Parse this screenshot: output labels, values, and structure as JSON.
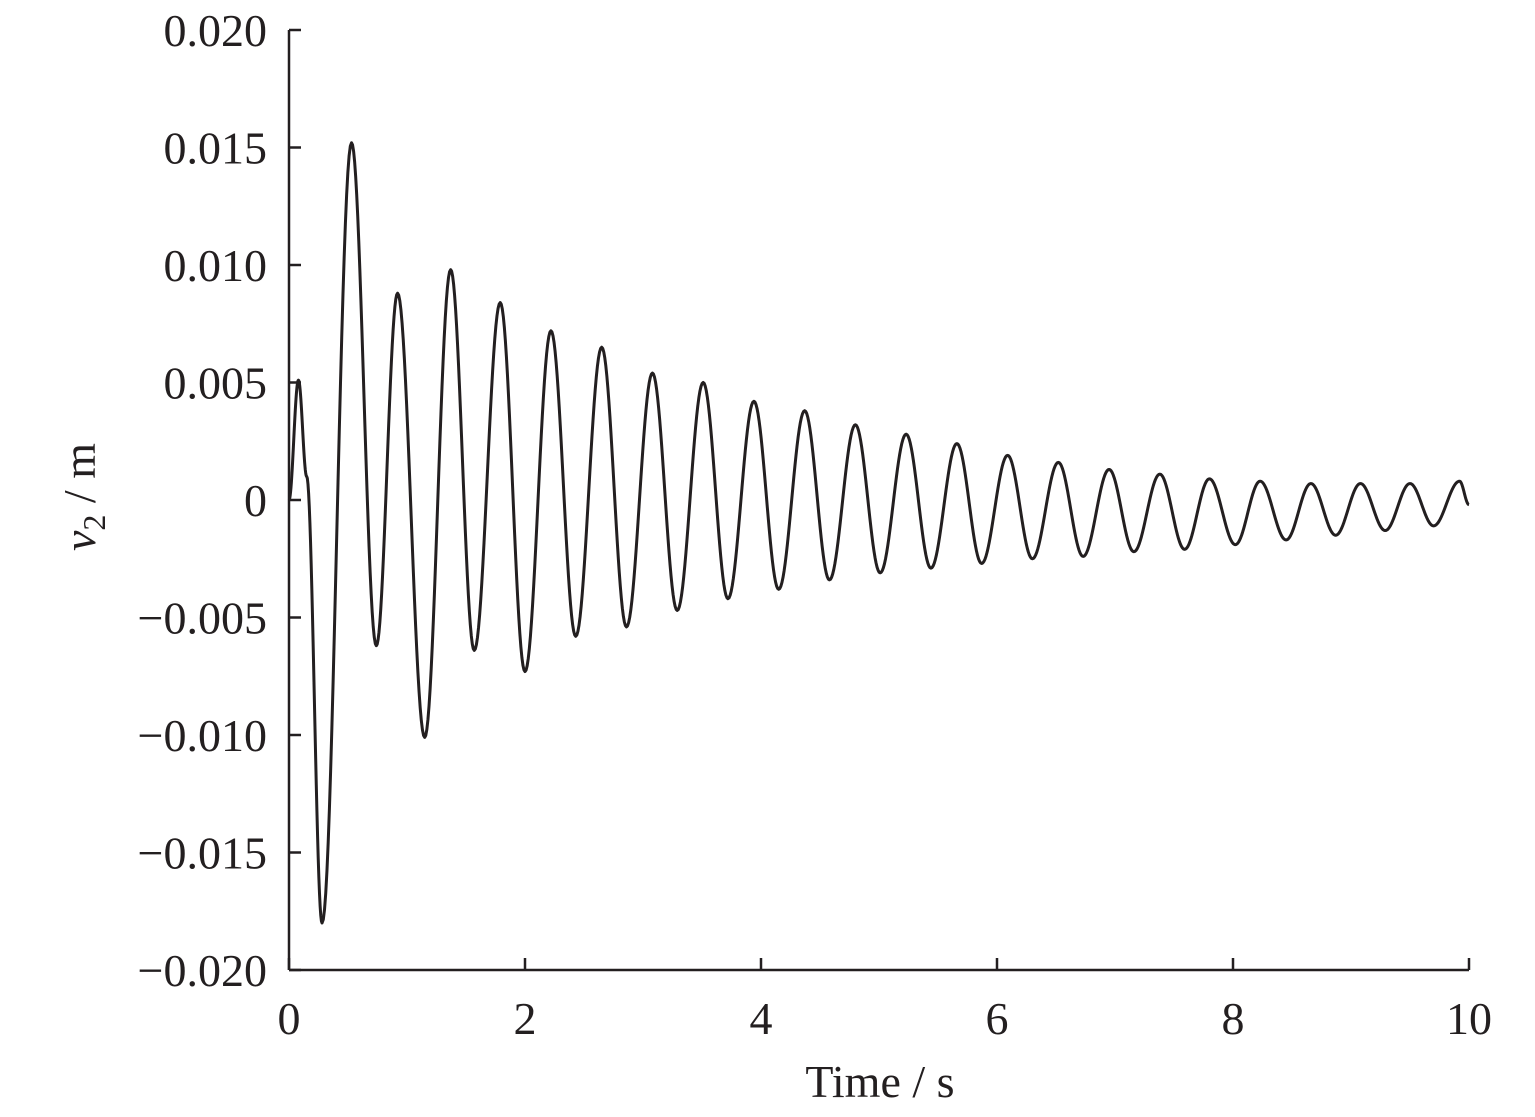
{
  "chart_data": {
    "type": "line",
    "xlabel": "Time / s",
    "ylabel": {
      "var": "v",
      "sub": "2",
      "unit": " / m"
    },
    "xlim": [
      0,
      10
    ],
    "ylim": [
      -0.02,
      0.02
    ],
    "grid": false,
    "x_ticks": [
      {
        "v": 0,
        "label": "0"
      },
      {
        "v": 2,
        "label": "2"
      },
      {
        "v": 4,
        "label": "4"
      },
      {
        "v": 6,
        "label": "6"
      },
      {
        "v": 8,
        "label": "8"
      },
      {
        "v": 10,
        "label": "10"
      }
    ],
    "y_ticks": [
      {
        "v": 0.02,
        "label": "0.020"
      },
      {
        "v": 0.015,
        "label": "0.015"
      },
      {
        "v": 0.01,
        "label": "0.010"
      },
      {
        "v": 0.005,
        "label": "0.005"
      },
      {
        "v": 0,
        "label": "0"
      },
      {
        "v": -0.005,
        "label": "−0.005"
      },
      {
        "v": -0.01,
        "label": "−0.010"
      },
      {
        "v": -0.015,
        "label": "−0.015"
      },
      {
        "v": -0.02,
        "label": "−0.020"
      }
    ],
    "series": [
      {
        "color": "#231f20",
        "points": [
          [
            0,
            0
          ],
          [
            0.08,
            0.0051
          ],
          [
            0.15,
            0.001
          ],
          [
            0.28,
            -0.018
          ],
          [
            0.53,
            0.0152
          ],
          [
            0.74,
            -0.0062
          ],
          [
            0.92,
            0.0088
          ],
          [
            1.15,
            -0.0101
          ],
          [
            1.37,
            0.0098
          ],
          [
            1.57,
            -0.0064
          ],
          [
            1.79,
            0.0084
          ],
          [
            2.0,
            -0.0073
          ],
          [
            2.22,
            0.0072
          ],
          [
            2.43,
            -0.0058
          ],
          [
            2.65,
            0.0065
          ],
          [
            2.86,
            -0.0054
          ],
          [
            3.08,
            0.0054
          ],
          [
            3.29,
            -0.0047
          ],
          [
            3.51,
            0.005
          ],
          [
            3.72,
            -0.0042
          ],
          [
            3.94,
            0.0042
          ],
          [
            4.15,
            -0.0038
          ],
          [
            4.37,
            0.0038
          ],
          [
            4.58,
            -0.0034
          ],
          [
            4.8,
            0.0032
          ],
          [
            5.01,
            -0.0031
          ],
          [
            5.23,
            0.0028
          ],
          [
            5.44,
            -0.0029
          ],
          [
            5.66,
            0.0024
          ],
          [
            5.87,
            -0.0027
          ],
          [
            6.09,
            0.0019
          ],
          [
            6.3,
            -0.0025
          ],
          [
            6.52,
            0.0016
          ],
          [
            6.73,
            -0.0024
          ],
          [
            6.95,
            0.0013
          ],
          [
            7.16,
            -0.0022
          ],
          [
            7.38,
            0.0011
          ],
          [
            7.59,
            -0.0021
          ],
          [
            7.8,
            0.0009
          ],
          [
            8.02,
            -0.0019
          ],
          [
            8.23,
            0.0008
          ],
          [
            8.45,
            -0.0017
          ],
          [
            8.66,
            0.0007
          ],
          [
            8.87,
            -0.0015
          ],
          [
            9.08,
            0.0007
          ],
          [
            9.29,
            -0.0013
          ],
          [
            9.5,
            0.0007
          ],
          [
            9.7,
            -0.0011
          ],
          [
            9.92,
            0.0008
          ],
          [
            10.0,
            -0.0002
          ]
        ]
      }
    ]
  }
}
